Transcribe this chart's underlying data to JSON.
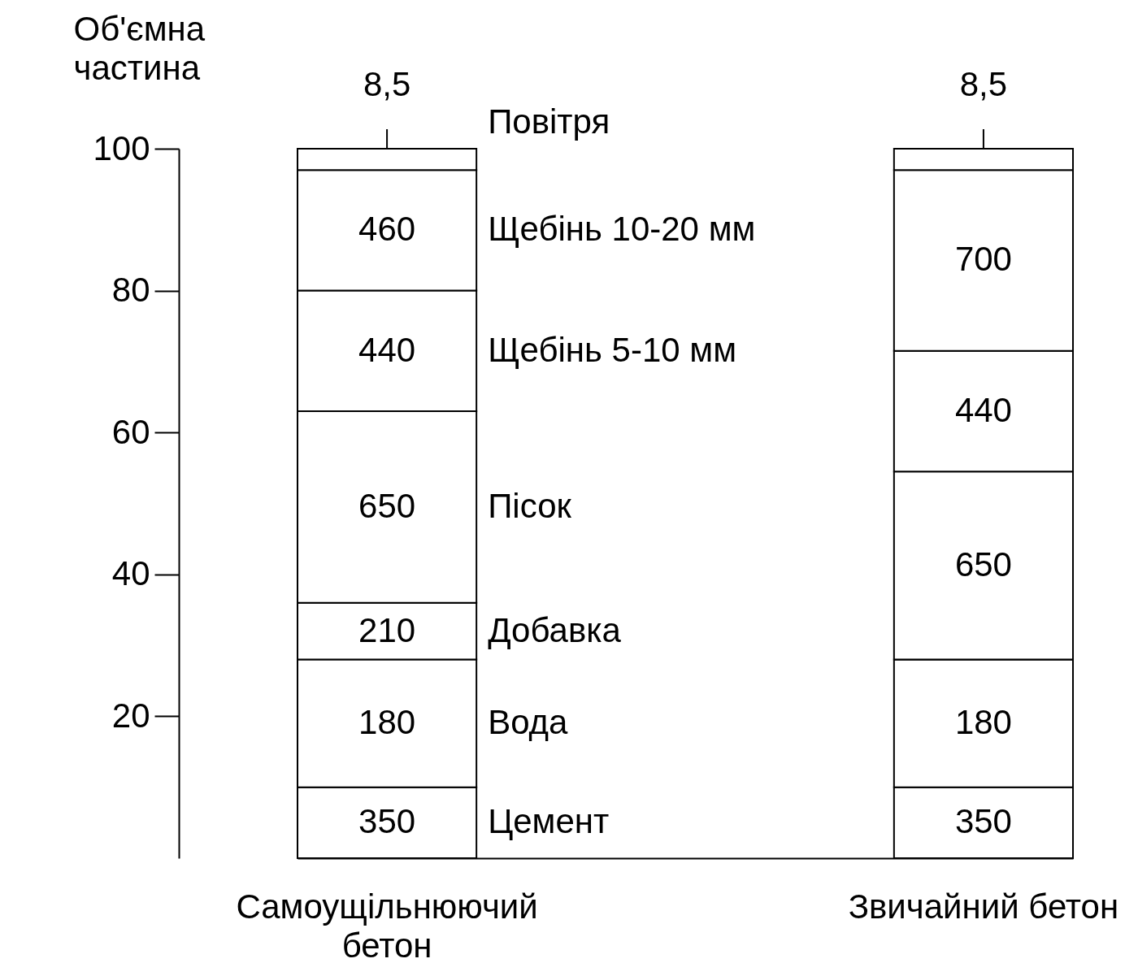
{
  "chart_data": {
    "type": "bar",
    "stacked": true,
    "ylabel": "Об'ємна частина",
    "categories": [
      "Самоущільнюючий бетон",
      "Звичайний бетон"
    ],
    "series": [
      {
        "name": "Цемент",
        "color": "#ffffff",
        "values": [
          10,
          10
        ]
      },
      {
        "name": "Вода",
        "color": "#ffffff",
        "values": [
          18,
          18
        ]
      },
      {
        "name": "Добавка",
        "color": "#ffffff",
        "values": [
          8,
          0
        ]
      },
      {
        "name": "Пісок",
        "color": "#ffffff",
        "values": [
          27,
          26.5
        ]
      },
      {
        "name": "Щебінь 5-10 мм",
        "color": "#ffffff",
        "values": [
          17,
          17
        ]
      },
      {
        "name": "Щебінь 10-20 мм",
        "color": "#ffffff",
        "values": [
          17,
          25.5
        ]
      },
      {
        "name": "Повітря",
        "color": "#ffffff",
        "values": [
          3,
          3
        ]
      }
    ],
    "annotations": [
      {
        "text": "350",
        "x": "Самоущільнюючий бетон",
        "y": 10
      },
      {
        "text": "180",
        "x": "Самоущільнюючий бетон",
        "y": 28
      },
      {
        "text": "210",
        "x": "Самоущільнюючий бетон",
        "y": 36
      },
      {
        "text": "650",
        "x": "Самоущільнюючий бетон",
        "y": 63
      },
      {
        "text": "440",
        "x": "Самоущільнюючий бетон",
        "y": 80
      },
      {
        "text": "460",
        "x": "Самоущільнюючий бетон",
        "y": 97
      },
      {
        "text": "8,5",
        "x": "Самоущільнюючий бетон",
        "y": 100
      },
      {
        "text": "350",
        "x": "Звичайний бетон",
        "y": 10
      },
      {
        "text": "180",
        "x": "Звичайний бетон",
        "y": 28
      },
      {
        "text": "650",
        "x": "Звичайний бетон",
        "y": 54.5
      },
      {
        "text": "440",
        "x": "Звичайний бетон",
        "y": 71.5
      },
      {
        "text": "700",
        "x": "Звичайний бетон",
        "y": 97
      },
      {
        "text": "8,5",
        "x": "Звичайний бетон",
        "y": 100
      }
    ],
    "ylim": [
      0,
      100
    ],
    "yticks": [
      20,
      40,
      60,
      80,
      100
    ],
    "grid": false,
    "legend": false
  }
}
